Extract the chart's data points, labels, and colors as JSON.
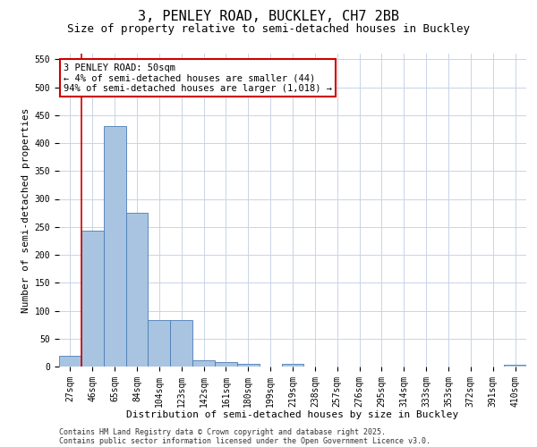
{
  "title1": "3, PENLEY ROAD, BUCKLEY, CH7 2BB",
  "title2": "Size of property relative to semi-detached houses in Buckley",
  "xlabel": "Distribution of semi-detached houses by size in Buckley",
  "ylabel": "Number of semi-detached properties",
  "categories": [
    "27sqm",
    "46sqm",
    "65sqm",
    "84sqm",
    "104sqm",
    "123sqm",
    "142sqm",
    "161sqm",
    "180sqm",
    "199sqm",
    "219sqm",
    "238sqm",
    "257sqm",
    "276sqm",
    "295sqm",
    "314sqm",
    "333sqm",
    "353sqm",
    "372sqm",
    "391sqm",
    "410sqm"
  ],
  "values": [
    20,
    243,
    430,
    275,
    84,
    84,
    12,
    8,
    5,
    0,
    5,
    0,
    0,
    0,
    0,
    0,
    0,
    0,
    0,
    0,
    3
  ],
  "bar_color": "#a8c4e0",
  "bar_edge_color": "#4a7cb5",
  "annotation_text": "3 PENLEY ROAD: 50sqm\n← 4% of semi-detached houses are smaller (44)\n94% of semi-detached houses are larger (1,018) →",
  "annotation_box_color": "#ffffff",
  "annotation_box_edge": "#cc0000",
  "annotation_text_color": "#000000",
  "red_line_color": "#cc0000",
  "ylim": [
    0,
    560
  ],
  "yticks": [
    0,
    50,
    100,
    150,
    200,
    250,
    300,
    350,
    400,
    450,
    500,
    550
  ],
  "footer1": "Contains HM Land Registry data © Crown copyright and database right 2025.",
  "footer2": "Contains public sector information licensed under the Open Government Licence v3.0.",
  "bg_color": "#ffffff",
  "grid_color": "#c8d4e8",
  "title1_fontsize": 11,
  "title2_fontsize": 9,
  "tick_fontsize": 7,
  "label_fontsize": 8,
  "footer_fontsize": 6,
  "annotation_fontsize": 7.5
}
